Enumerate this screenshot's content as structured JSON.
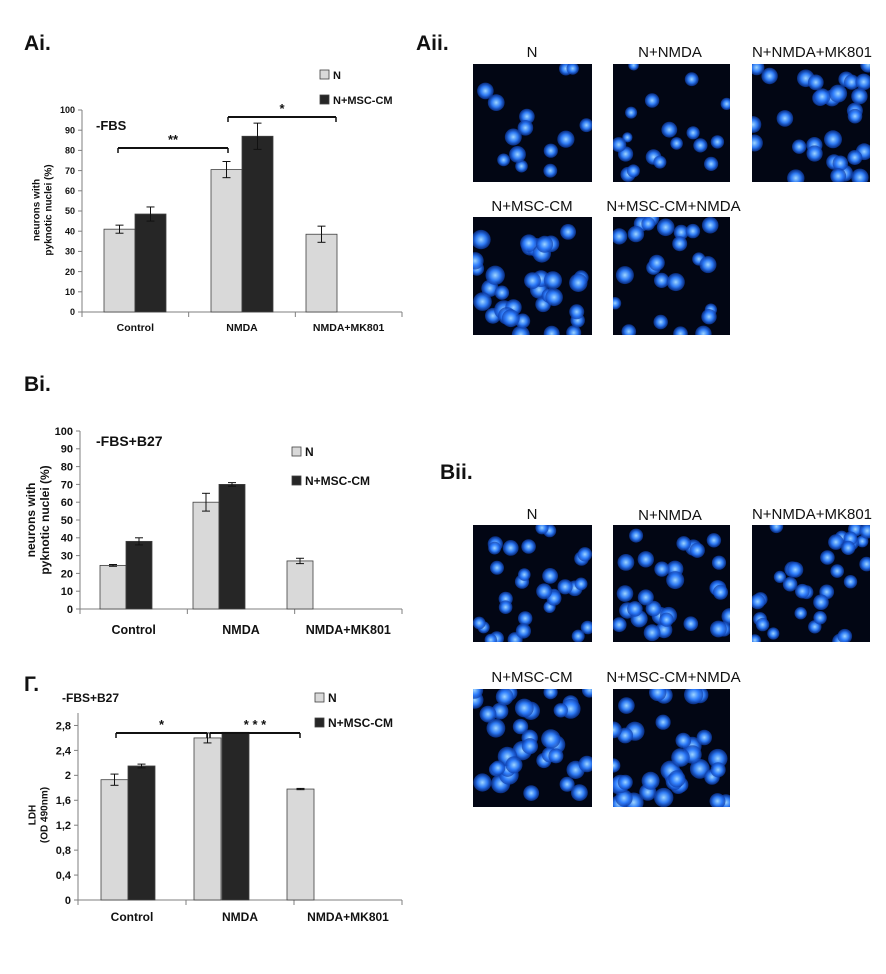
{
  "panel_labels": {
    "ai": "Ai.",
    "aii": "Aii.",
    "bi": "Bi.",
    "bii": "Bii.",
    "g": "Г."
  },
  "chart_data": [
    {
      "id": "ai",
      "type": "bar",
      "title": "-FBS",
      "ylabel": "neurons with pyknotic nuclei (%)",
      "ylabel_lines": [
        "neurons with",
        "pyknotic nuclei (%)"
      ],
      "categories": [
        "Control",
        "NMDA",
        "NMDA+MK801"
      ],
      "series": [
        {
          "name": "N",
          "values": [
            41,
            70.5,
            38.5
          ],
          "errors": [
            2,
            4,
            4
          ],
          "color": "#d9d9d9"
        },
        {
          "name": "N+MSC-CM",
          "values": [
            48.5,
            87,
            null
          ],
          "errors": [
            3.5,
            6.5,
            null
          ],
          "color": "#262626"
        }
      ],
      "ylim": [
        0,
        100
      ],
      "yticks": [
        "0",
        "10",
        "20",
        "30",
        "40",
        "50",
        "60",
        "70",
        "80",
        "90",
        "100"
      ],
      "significance": [
        {
          "from": 0,
          "to": 1,
          "label": "**"
        },
        {
          "from": 1,
          "to": 2,
          "label": "*"
        }
      ],
      "grid": false,
      "legend": "top-right"
    },
    {
      "id": "bi",
      "type": "bar",
      "title": "-FBS+B27",
      "ylabel": "neurons with pyknotic nuclei (%)",
      "ylabel_lines": [
        "neurons with",
        "pyknotic nuclei (%)"
      ],
      "categories": [
        "Control",
        "NMDA",
        "NMDA+MK801"
      ],
      "series": [
        {
          "name": "N",
          "values": [
            24.5,
            60,
            27
          ],
          "errors": [
            0.5,
            5,
            1.5
          ],
          "color": "#d9d9d9"
        },
        {
          "name": "N+MSC-CM",
          "values": [
            38,
            70,
            null
          ],
          "errors": [
            2,
            1,
            null
          ],
          "color": "#262626"
        }
      ],
      "ylim": [
        0,
        100
      ],
      "yticks": [
        "0",
        "10",
        "20",
        "30",
        "40",
        "50",
        "60",
        "70",
        "80",
        "90",
        "100"
      ],
      "significance": [],
      "grid": false,
      "legend": "top-right"
    },
    {
      "id": "g",
      "type": "bar",
      "title": "-FBS+B27",
      "ylabel": "LDH (OD 490nm)",
      "ylabel_lines": [
        "LDH",
        "(OD 490nm)"
      ],
      "categories": [
        "Control",
        "NMDA",
        "NMDA+MK801"
      ],
      "series": [
        {
          "name": "N",
          "values": [
            1.93,
            2.6,
            1.78
          ],
          "errors": [
            0.09,
            0.08,
            0.01
          ],
          "color": "#d9d9d9"
        },
        {
          "name": "N+MSC-CM",
          "values": [
            2.15,
            2.69,
            null
          ],
          "errors": [
            0.03,
            0,
            null
          ],
          "color": "#262626"
        }
      ],
      "ylim": [
        0,
        3.0
      ],
      "yticks": [
        "0",
        "0,4",
        "0,8",
        "1,2",
        "1,6",
        "2",
        "2,4",
        "2,8"
      ],
      "significance": [
        {
          "from": 0,
          "to": 1,
          "label": "*"
        },
        {
          "from": 1,
          "to": 2,
          "label": "* * *"
        }
      ],
      "grid": false,
      "legend": "top-right"
    }
  ],
  "micrographs": {
    "aii": [
      "N",
      "N+NMDA",
      "N+NMDA+MK801",
      "N+MSC-CM",
      "N+MSC-CM+NMDA"
    ],
    "bii": [
      "N",
      "N+NMDA",
      "N+NMDA+MK801",
      "N+MSC-CM",
      "N+MSC-CM+NMDA"
    ]
  },
  "colors": {
    "bar_light": "#d9d9d9",
    "bar_dark": "#262626",
    "nuclei": "#2f7fff",
    "micro_bg": "#020614"
  }
}
